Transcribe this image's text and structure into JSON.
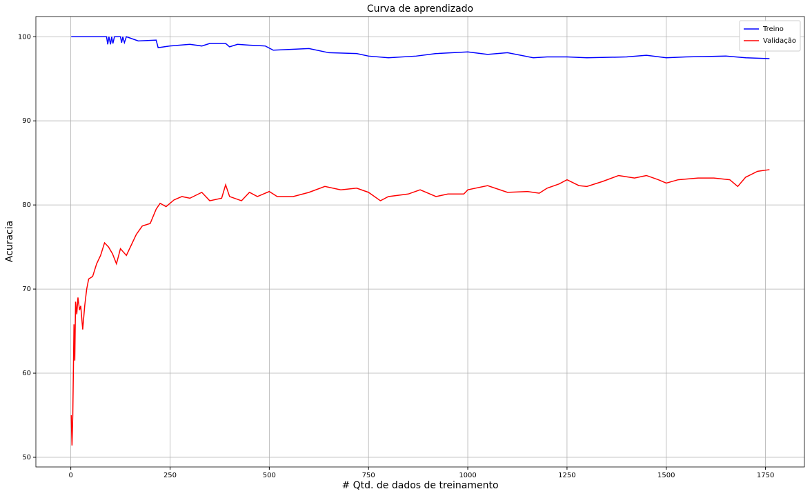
{
  "chart_data": {
    "type": "line",
    "title": "Curva de aprendizado",
    "x_label": "# Qtd. de dados de treinamento",
    "y_label": "Acuracia",
    "xlim": [
      -88,
      1848
    ],
    "ylim": [
      48.85,
      102.4
    ],
    "xticks": [
      0,
      250,
      500,
      750,
      1000,
      1250,
      1500,
      1750
    ],
    "yticks": [
      50,
      60,
      70,
      80,
      90,
      100
    ],
    "grid": true,
    "legend": "upper right",
    "series": [
      {
        "name": "Treino",
        "color": "#0000ff",
        "x": [
          1,
          90,
          93,
          96,
          100,
          103,
          106,
          110,
          125,
          128,
          131,
          135,
          140,
          170,
          215,
          220,
          250,
          300,
          330,
          350,
          390,
          400,
          420,
          450,
          490,
          510,
          600,
          650,
          720,
          750,
          800,
          870,
          920,
          1000,
          1050,
          1100,
          1165,
          1200,
          1250,
          1300,
          1400,
          1450,
          1500,
          1550,
          1650,
          1700,
          1760
        ],
        "values": [
          100,
          100,
          99.1,
          100,
          99.1,
          100,
          99.2,
          100,
          100,
          99.3,
          100,
          99.3,
          100,
          99.5,
          99.6,
          98.7,
          98.9,
          99.1,
          98.9,
          99.2,
          99.2,
          98.8,
          99.1,
          99,
          98.9,
          98.4,
          98.6,
          98.1,
          98,
          97.7,
          97.5,
          97.7,
          98,
          98.2,
          97.9,
          98.1,
          97.5,
          97.6,
          97.6,
          97.5,
          97.6,
          97.8,
          97.5,
          97.6,
          97.7,
          97.5,
          97.4
        ]
      },
      {
        "name": "Validação",
        "color": "#ff0000",
        "x": [
          1,
          3,
          5,
          8,
          10,
          12,
          15,
          18,
          22,
          25,
          30,
          35,
          40,
          45,
          55,
          65,
          75,
          85,
          95,
          105,
          115,
          125,
          140,
          150,
          165,
          180,
          200,
          215,
          225,
          240,
          260,
          280,
          300,
          330,
          350,
          380,
          390,
          400,
          430,
          450,
          470,
          500,
          520,
          560,
          600,
          640,
          680,
          720,
          750,
          780,
          800,
          850,
          880,
          920,
          950,
          990,
          1000,
          1050,
          1100,
          1150,
          1180,
          1200,
          1230,
          1250,
          1280,
          1300,
          1340,
          1380,
          1420,
          1450,
          1480,
          1500,
          1530,
          1580,
          1620,
          1660,
          1680,
          1700,
          1730,
          1760
        ],
        "values": [
          55,
          51.4,
          55,
          65.8,
          61.5,
          68.5,
          67,
          69,
          67.5,
          68,
          65.2,
          68,
          70,
          71.2,
          71.5,
          73,
          74,
          75.5,
          75,
          74.2,
          73,
          74.8,
          74,
          75,
          76.5,
          77.5,
          77.8,
          79.5,
          80.2,
          79.8,
          80.6,
          81,
          80.8,
          81.5,
          80.5,
          80.8,
          82.4,
          81,
          80.5,
          81.5,
          81,
          81.6,
          81,
          81,
          81.5,
          82.2,
          81.8,
          82,
          81.5,
          80.5,
          81,
          81.3,
          81.8,
          81,
          81.3,
          81.3,
          81.8,
          82.3,
          81.5,
          81.6,
          81.4,
          82,
          82.5,
          83,
          82.3,
          82.2,
          82.8,
          83.5,
          83.2,
          83.5,
          83,
          82.6,
          83,
          83.2,
          83.2,
          83,
          82.2,
          83.3,
          84,
          84.2
        ]
      }
    ]
  }
}
